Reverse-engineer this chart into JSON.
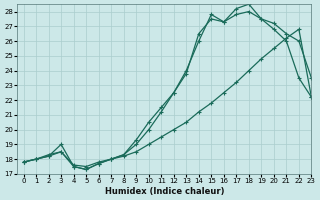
{
  "xlabel": "Humidex (Indice chaleur)",
  "bg_color": "#cce8e8",
  "grid_color": "#aacece",
  "line_color": "#1a6b5a",
  "xlim": [
    -0.5,
    23
  ],
  "ylim": [
    17,
    28.5
  ],
  "xticks": [
    0,
    1,
    2,
    3,
    4,
    5,
    6,
    7,
    8,
    9,
    10,
    11,
    12,
    13,
    14,
    15,
    16,
    17,
    18,
    19,
    20,
    21,
    22,
    23
  ],
  "yticks": [
    17,
    18,
    19,
    20,
    21,
    22,
    23,
    24,
    25,
    26,
    27,
    28
  ],
  "line1_x": [
    0,
    1,
    2,
    3,
    4,
    5,
    6,
    7,
    8,
    9,
    10,
    11,
    12,
    13,
    14,
    15,
    16,
    17,
    18,
    19,
    20,
    21,
    22,
    23
  ],
  "line1_y": [
    17.8,
    18.0,
    18.2,
    19.0,
    17.5,
    17.3,
    17.7,
    18.0,
    18.3,
    19.3,
    20.5,
    21.5,
    22.5,
    23.8,
    26.5,
    27.5,
    27.3,
    27.8,
    28.0,
    27.5,
    26.8,
    26.0,
    23.5,
    22.2
  ],
  "line2_x": [
    0,
    1,
    2,
    3,
    4,
    5,
    6,
    7,
    8,
    9,
    10,
    11,
    12,
    13,
    14,
    15,
    16,
    17,
    18,
    19,
    20,
    21,
    22,
    23
  ],
  "line2_y": [
    17.8,
    18.0,
    18.2,
    18.5,
    17.5,
    17.3,
    17.7,
    18.0,
    18.3,
    19.0,
    20.0,
    21.2,
    22.5,
    24.0,
    26.0,
    27.8,
    27.3,
    28.2,
    28.5,
    27.5,
    27.2,
    26.5,
    26.0,
    23.5
  ],
  "line3_x": [
    0,
    1,
    2,
    3,
    4,
    5,
    6,
    7,
    8,
    9,
    10,
    11,
    12,
    13,
    14,
    15,
    16,
    17,
    18,
    19,
    20,
    21,
    22,
    23
  ],
  "line3_y": [
    17.8,
    18.0,
    18.3,
    18.5,
    17.6,
    17.5,
    17.8,
    18.0,
    18.2,
    18.5,
    19.0,
    19.5,
    20.0,
    20.5,
    21.2,
    21.8,
    22.5,
    23.2,
    24.0,
    24.8,
    25.5,
    26.2,
    26.8,
    22.2
  ]
}
